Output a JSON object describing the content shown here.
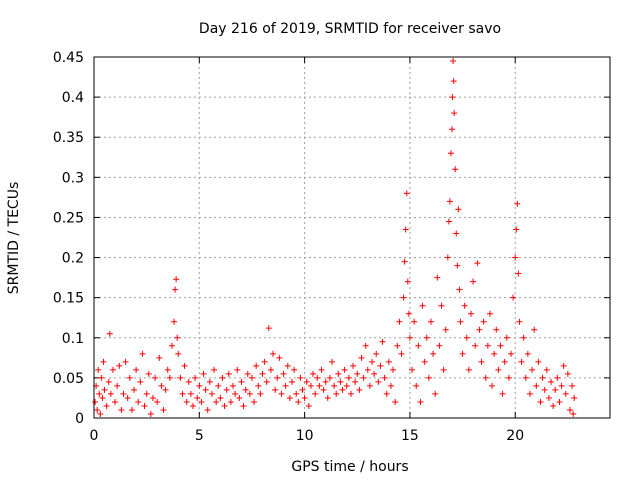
{
  "chart_data": {
    "type": "scatter",
    "title": "Day 216 of 2019, SRMTID for receiver savo",
    "xlabel": "GPS time / hours",
    "ylabel": "SRMTID / TECUs",
    "xlim": [
      0,
      24.5
    ],
    "ylim": [
      0,
      0.45
    ],
    "xticks": [
      0,
      5,
      10,
      15,
      20
    ],
    "xtick_labels": [
      "0",
      "5",
      "10",
      "15",
      "20"
    ],
    "yticks": [
      0,
      0.05,
      0.1,
      0.15,
      0.2,
      0.25,
      0.3,
      0.35,
      0.4,
      0.45
    ],
    "ytick_labels": [
      "0",
      "0.05",
      "0.1",
      "0.15",
      "0.2",
      "0.25",
      "0.3",
      "0.35",
      "0.4",
      "0.45"
    ],
    "grid": true,
    "marker": "+",
    "series": [
      {
        "name": "SRMTID",
        "color": "#ff0000",
        "points": [
          [
            0.05,
            0.02
          ],
          [
            0.1,
            0.04
          ],
          [
            0.15,
            0.01
          ],
          [
            0.2,
            0.06
          ],
          [
            0.25,
            0.03
          ],
          [
            0.3,
            0.005
          ],
          [
            0.35,
            0.05
          ],
          [
            0.4,
            0.025
          ],
          [
            0.45,
            0.07
          ],
          [
            0.5,
            0.035
          ],
          [
            0.6,
            0.015
          ],
          [
            0.7,
            0.045
          ],
          [
            0.75,
            0.105
          ],
          [
            0.8,
            0.03
          ],
          [
            0.9,
            0.06
          ],
          [
            1.0,
            0.02
          ],
          [
            1.1,
            0.04
          ],
          [
            1.2,
            0.065
          ],
          [
            1.3,
            0.01
          ],
          [
            1.4,
            0.03
          ],
          [
            1.5,
            0.07
          ],
          [
            1.6,
            0.025
          ],
          [
            1.7,
            0.05
          ],
          [
            1.8,
            0.01
          ],
          [
            1.9,
            0.035
          ],
          [
            2.0,
            0.06
          ],
          [
            2.1,
            0.02
          ],
          [
            2.2,
            0.045
          ],
          [
            2.3,
            0.08
          ],
          [
            2.4,
            0.015
          ],
          [
            2.5,
            0.03
          ],
          [
            2.6,
            0.055
          ],
          [
            2.7,
            0.005
          ],
          [
            2.8,
            0.025
          ],
          [
            2.9,
            0.05
          ],
          [
            3.0,
            0.02
          ],
          [
            3.1,
            0.075
          ],
          [
            3.2,
            0.04
          ],
          [
            3.3,
            0.01
          ],
          [
            3.4,
            0.035
          ],
          [
            3.5,
            0.06
          ],
          [
            3.6,
            0.05
          ],
          [
            3.7,
            0.09
          ],
          [
            3.8,
            0.12
          ],
          [
            3.85,
            0.16
          ],
          [
            3.9,
            0.173
          ],
          [
            3.95,
            0.1
          ],
          [
            4.0,
            0.08
          ],
          [
            4.1,
            0.05
          ],
          [
            4.2,
            0.03
          ],
          [
            4.3,
            0.065
          ],
          [
            4.4,
            0.02
          ],
          [
            4.5,
            0.045
          ],
          [
            4.6,
            0.03
          ],
          [
            4.7,
            0.015
          ],
          [
            4.8,
            0.05
          ],
          [
            4.9,
            0.025
          ],
          [
            5.0,
            0.04
          ],
          [
            5.1,
            0.02
          ],
          [
            5.2,
            0.055
          ],
          [
            5.3,
            0.035
          ],
          [
            5.4,
            0.01
          ],
          [
            5.5,
            0.045
          ],
          [
            5.6,
            0.03
          ],
          [
            5.7,
            0.06
          ],
          [
            5.8,
            0.02
          ],
          [
            5.9,
            0.04
          ],
          [
            6.0,
            0.025
          ],
          [
            6.1,
            0.05
          ],
          [
            6.2,
            0.015
          ],
          [
            6.3,
            0.035
          ],
          [
            6.4,
            0.055
          ],
          [
            6.5,
            0.02
          ],
          [
            6.6,
            0.04
          ],
          [
            6.7,
            0.03
          ],
          [
            6.8,
            0.06
          ],
          [
            6.9,
            0.025
          ],
          [
            7.0,
            0.045
          ],
          [
            7.1,
            0.015
          ],
          [
            7.2,
            0.035
          ],
          [
            7.3,
            0.055
          ],
          [
            7.4,
            0.03
          ],
          [
            7.5,
            0.05
          ],
          [
            7.6,
            0.02
          ],
          [
            7.7,
            0.065
          ],
          [
            7.8,
            0.04
          ],
          [
            7.9,
            0.03
          ],
          [
            8.0,
            0.055
          ],
          [
            8.1,
            0.07
          ],
          [
            8.2,
            0.045
          ],
          [
            8.3,
            0.112
          ],
          [
            8.4,
            0.06
          ],
          [
            8.5,
            0.08
          ],
          [
            8.6,
            0.035
          ],
          [
            8.7,
            0.05
          ],
          [
            8.8,
            0.075
          ],
          [
            8.9,
            0.03
          ],
          [
            9.0,
            0.055
          ],
          [
            9.1,
            0.04
          ],
          [
            9.2,
            0.065
          ],
          [
            9.3,
            0.025
          ],
          [
            9.4,
            0.045
          ],
          [
            9.5,
            0.06
          ],
          [
            9.6,
            0.03
          ],
          [
            9.7,
            0.02
          ],
          [
            9.8,
            0.05
          ],
          [
            9.9,
            0.035
          ],
          [
            10.0,
            0.025
          ],
          [
            10.1,
            0.045
          ],
          [
            10.2,
            0.015
          ],
          [
            10.3,
            0.04
          ],
          [
            10.4,
            0.055
          ],
          [
            10.5,
            0.03
          ],
          [
            10.6,
            0.05
          ],
          [
            10.7,
            0.04
          ],
          [
            10.8,
            0.06
          ],
          [
            10.9,
            0.035
          ],
          [
            11.0,
            0.045
          ],
          [
            11.1,
            0.025
          ],
          [
            11.2,
            0.05
          ],
          [
            11.3,
            0.07
          ],
          [
            11.4,
            0.04
          ],
          [
            11.5,
            0.03
          ],
          [
            11.6,
            0.055
          ],
          [
            11.7,
            0.045
          ],
          [
            11.8,
            0.035
          ],
          [
            11.9,
            0.06
          ],
          [
            12.0,
            0.04
          ],
          [
            12.1,
            0.05
          ],
          [
            12.2,
            0.03
          ],
          [
            12.3,
            0.065
          ],
          [
            12.4,
            0.045
          ],
          [
            12.5,
            0.055
          ],
          [
            12.6,
            0.035
          ],
          [
            12.7,
            0.075
          ],
          [
            12.8,
            0.05
          ],
          [
            12.9,
            0.09
          ],
          [
            13.0,
            0.06
          ],
          [
            13.1,
            0.04
          ],
          [
            13.2,
            0.07
          ],
          [
            13.3,
            0.055
          ],
          [
            13.4,
            0.08
          ],
          [
            13.5,
            0.045
          ],
          [
            13.6,
            0.065
          ],
          [
            13.7,
            0.095
          ],
          [
            13.8,
            0.05
          ],
          [
            13.9,
            0.03
          ],
          [
            14.0,
            0.07
          ],
          [
            14.1,
            0.04
          ],
          [
            14.2,
            0.06
          ],
          [
            14.3,
            0.02
          ],
          [
            14.4,
            0.09
          ],
          [
            14.5,
            0.12
          ],
          [
            14.6,
            0.08
          ],
          [
            14.7,
            0.15
          ],
          [
            14.75,
            0.195
          ],
          [
            14.8,
            0.235
          ],
          [
            14.85,
            0.28
          ],
          [
            14.9,
            0.17
          ],
          [
            14.95,
            0.13
          ],
          [
            15.0,
            0.1
          ],
          [
            15.1,
            0.06
          ],
          [
            15.2,
            0.12
          ],
          [
            15.3,
            0.04
          ],
          [
            15.4,
            0.09
          ],
          [
            15.5,
            0.02
          ],
          [
            15.6,
            0.14
          ],
          [
            15.7,
            0.07
          ],
          [
            15.8,
            0.1
          ],
          [
            15.9,
            0.05
          ],
          [
            16.0,
            0.12
          ],
          [
            16.1,
            0.08
          ],
          [
            16.2,
            0.03
          ],
          [
            16.3,
            0.175
          ],
          [
            16.4,
            0.09
          ],
          [
            16.5,
            0.14
          ],
          [
            16.6,
            0.06
          ],
          [
            16.7,
            0.11
          ],
          [
            16.8,
            0.2
          ],
          [
            16.85,
            0.245
          ],
          [
            16.9,
            0.27
          ],
          [
            16.95,
            0.33
          ],
          [
            17.0,
            0.36
          ],
          [
            17.02,
            0.4
          ],
          [
            17.05,
            0.445
          ],
          [
            17.08,
            0.42
          ],
          [
            17.1,
            0.38
          ],
          [
            17.15,
            0.31
          ],
          [
            17.2,
            0.23
          ],
          [
            17.25,
            0.19
          ],
          [
            17.3,
            0.26
          ],
          [
            17.35,
            0.16
          ],
          [
            17.4,
            0.12
          ],
          [
            17.5,
            0.08
          ],
          [
            17.6,
            0.14
          ],
          [
            17.7,
            0.1
          ],
          [
            17.8,
            0.06
          ],
          [
            17.9,
            0.13
          ],
          [
            18.0,
            0.17
          ],
          [
            18.1,
            0.09
          ],
          [
            18.2,
            0.193
          ],
          [
            18.3,
            0.11
          ],
          [
            18.4,
            0.07
          ],
          [
            18.5,
            0.12
          ],
          [
            18.6,
            0.05
          ],
          [
            18.7,
            0.09
          ],
          [
            18.8,
            0.13
          ],
          [
            18.9,
            0.04
          ],
          [
            19.0,
            0.08
          ],
          [
            19.1,
            0.11
          ],
          [
            19.2,
            0.06
          ],
          [
            19.3,
            0.09
          ],
          [
            19.4,
            0.03
          ],
          [
            19.5,
            0.07
          ],
          [
            19.6,
            0.1
          ],
          [
            19.7,
            0.05
          ],
          [
            19.8,
            0.08
          ],
          [
            19.9,
            0.15
          ],
          [
            20.0,
            0.2
          ],
          [
            20.05,
            0.235
          ],
          [
            20.1,
            0.267
          ],
          [
            20.15,
            0.18
          ],
          [
            20.2,
            0.12
          ],
          [
            20.3,
            0.07
          ],
          [
            20.4,
            0.1
          ],
          [
            20.5,
            0.05
          ],
          [
            20.6,
            0.08
          ],
          [
            20.7,
            0.03
          ],
          [
            20.8,
            0.06
          ],
          [
            20.9,
            0.11
          ],
          [
            21.0,
            0.04
          ],
          [
            21.1,
            0.07
          ],
          [
            21.2,
            0.02
          ],
          [
            21.3,
            0.05
          ],
          [
            21.4,
            0.035
          ],
          [
            21.5,
            0.06
          ],
          [
            21.6,
            0.025
          ],
          [
            21.7,
            0.045
          ],
          [
            21.8,
            0.015
          ],
          [
            21.9,
            0.035
          ],
          [
            22.0,
            0.05
          ],
          [
            22.1,
            0.02
          ],
          [
            22.2,
            0.04
          ],
          [
            22.3,
            0.065
          ],
          [
            22.4,
            0.03
          ],
          [
            22.5,
            0.055
          ],
          [
            22.6,
            0.01
          ],
          [
            22.7,
            0.04
          ],
          [
            22.75,
            0.005
          ],
          [
            22.8,
            0.025
          ]
        ]
      }
    ]
  }
}
